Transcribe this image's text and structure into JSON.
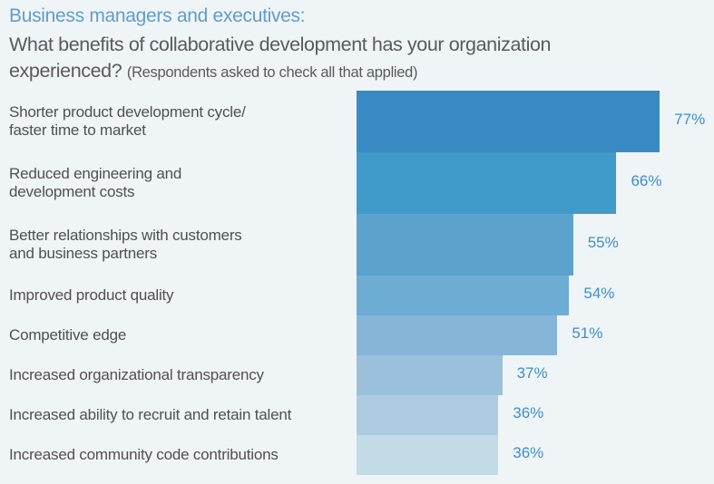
{
  "chart_data": {
    "type": "bar",
    "orientation": "horizontal",
    "title": "Business managers and executives:",
    "subtitle": "What benefits of collaborative development has your organization experienced?",
    "subtitle_note": "(Respondents asked to check all that applied)",
    "categories": [
      "Shorter product development cycle/\nfaster time to market",
      "Reduced engineering and\ndevelopment costs",
      "Better relationships with customers\nand business partners",
      "Improved product quality",
      "Competitive edge",
      "Increased organizational transparency",
      "Increased ability to recruit and retain talent",
      "Increased community code contributions"
    ],
    "values": [
      77,
      66,
      55,
      54,
      51,
      37,
      36,
      36
    ],
    "value_labels": [
      "77%",
      "66%",
      "55%",
      "54%",
      "51%",
      "37%",
      "36%",
      "36%"
    ],
    "unit": "%",
    "xlim": [
      0,
      100
    ],
    "grid": false,
    "legend": "none",
    "colors": [
      "#378bc2",
      "#409bca",
      "#5ba3cd",
      "#6dacd3",
      "#86b5d8",
      "#9bc0dc",
      "#adcce1",
      "#c3dae7"
    ],
    "label_color": "#3d8fc8",
    "background": "#eff4f7"
  }
}
